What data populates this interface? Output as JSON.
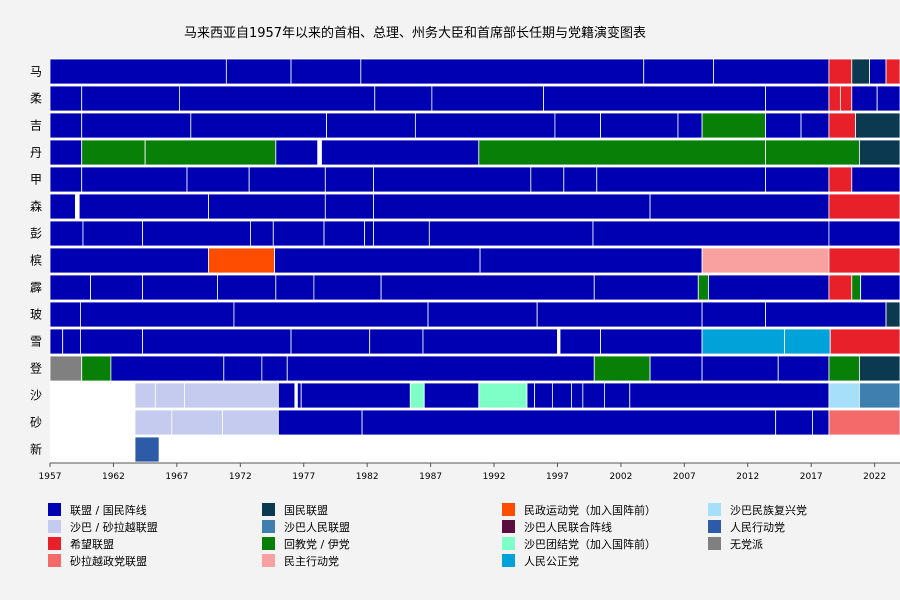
{
  "chart_data": {
    "type": "timeline",
    "title": "马来西亚自1957年以来的首相、总理、州务大臣和首席部长任期与党籍演变图表",
    "xlim": [
      1957,
      2024
    ],
    "x_ticks": [
      1957,
      1962,
      1967,
      1972,
      1977,
      1982,
      1987,
      1992,
      1997,
      2002,
      2007,
      2012,
      2017,
      2022
    ],
    "rows": [
      "马",
      "柔",
      "吉",
      "丹",
      "甲",
      "森",
      "彭",
      "槟",
      "霹",
      "玻",
      "雪",
      "登",
      "沙",
      "砂",
      "新"
    ],
    "parties": [
      {
        "key": "BN",
        "name": "联盟 / 国民阵线",
        "color": "#0000b3"
      },
      {
        "key": "SABAH_ALLIANCE",
        "name": "沙巴 / 砂拉越联盟",
        "color": "#c5caef"
      },
      {
        "key": "PH",
        "name": "希望联盟",
        "color": "#e8202a"
      },
      {
        "key": "GPS",
        "name": "砂拉越政党联盟",
        "color": "#f46a6a"
      },
      {
        "key": "PN",
        "name": "国民联盟",
        "color": "#0b3a50"
      },
      {
        "key": "USNO",
        "name": "沙巴人民联盟",
        "color": "#3f7fb0"
      },
      {
        "key": "PAS",
        "name": "回教党 / 伊党",
        "color": "#088008"
      },
      {
        "key": "DAP",
        "name": "民主行动党",
        "color": "#f9a0a0"
      },
      {
        "key": "GERAKAN",
        "name": "民政运动党（加入国阵前）",
        "color": "#ff4d00"
      },
      {
        "key": "UPKO",
        "name": "沙巴人民联合阵线",
        "color": "#5a0e40"
      },
      {
        "key": "PBS",
        "name": "沙巴团结党（加入国阵前）",
        "color": "#7fffc8"
      },
      {
        "key": "PKR",
        "name": "人民公正党",
        "color": "#00a3d9"
      },
      {
        "key": "WARISAN",
        "name": "沙巴民族复兴党",
        "color": "#a5dff9"
      },
      {
        "key": "PAP",
        "name": "人民行动党",
        "color": "#2e5ba8"
      },
      {
        "key": "IND",
        "name": "无党派",
        "color": "#808080"
      }
    ],
    "tenures": [
      [
        [
          "BN",
          1957.0,
          1970.9
        ],
        [
          "BN",
          1970.9,
          1976.0
        ],
        [
          "BN",
          1976.0,
          1981.5
        ],
        [
          "BN",
          1981.5,
          2003.8
        ],
        [
          "BN",
          2003.8,
          2009.3
        ],
        [
          "BN",
          2009.3,
          2018.4
        ],
        [
          "PH",
          2018.4,
          2020.2
        ],
        [
          "PN",
          2020.2,
          2021.6
        ],
        [
          "BN",
          2021.6,
          2022.9
        ],
        [
          "PH",
          2022.9,
          2024.0
        ]
      ],
      [
        [
          "BN",
          1957.0,
          1959.5
        ],
        [
          "BN",
          1959.5,
          1967.2
        ],
        [
          "BN",
          1967.2,
          1982.6
        ],
        [
          "BN",
          1982.6,
          1987.1
        ],
        [
          "BN",
          1987.1,
          1995.9
        ],
        [
          "BN",
          1995.9,
          2013.4
        ],
        [
          "BN",
          2013.4,
          2018.4
        ],
        [
          "PH",
          2018.4,
          2019.3
        ],
        [
          "PH",
          2019.3,
          2020.2
        ],
        [
          "BN",
          2020.2,
          2022.2
        ],
        [
          "BN",
          2022.2,
          2024.0
        ]
      ],
      [
        [
          "BN",
          1957.0,
          1959.5
        ],
        [
          "BN",
          1959.5,
          1968.1
        ],
        [
          "BN",
          1968.1,
          1978.8
        ],
        [
          "BN",
          1978.8,
          1985.8
        ],
        [
          "BN",
          1985.8,
          1996.8
        ],
        [
          "BN",
          1996.8,
          2000.4
        ],
        [
          "BN",
          2000.4,
          2006.5
        ],
        [
          "BN",
          2006.5,
          2008.4
        ],
        [
          "PAS",
          2008.4,
          2013.4
        ],
        [
          "BN",
          2013.4,
          2016.2
        ],
        [
          "BN",
          2016.2,
          2018.4
        ],
        [
          "PH",
          2018.4,
          2020.5
        ],
        [
          "PN",
          2020.5,
          2024.0
        ]
      ],
      [
        [
          "BN",
          1957.0,
          1959.5
        ],
        [
          "PAS",
          1959.5,
          1964.5
        ],
        [
          "PAS",
          1964.5,
          1974.8
        ],
        [
          "BN",
          1974.8,
          1978.1
        ],
        [
          "BN",
          1978.4,
          1990.8
        ],
        [
          "PAS",
          1990.8,
          2013.4
        ],
        [
          "PAS",
          2013.4,
          2020.8
        ],
        [
          "PN",
          2020.8,
          2024.0
        ]
      ],
      [
        [
          "BN",
          1957.0,
          1959.5
        ],
        [
          "BN",
          1959.5,
          1967.8
        ],
        [
          "BN",
          1967.8,
          1972.7
        ],
        [
          "BN",
          1972.7,
          1978.7
        ],
        [
          "BN",
          1978.7,
          1982.5
        ],
        [
          "BN",
          1982.5,
          1994.9
        ],
        [
          "BN",
          1994.9,
          1997.5
        ],
        [
          "BN",
          1997.5,
          2000.1
        ],
        [
          "BN",
          2000.1,
          2013.4
        ],
        [
          "BN",
          2013.4,
          2018.4
        ],
        [
          "PH",
          2018.4,
          2020.2
        ],
        [
          "BN",
          2020.2,
          2024.0
        ]
      ],
      [
        [
          "BN",
          1957.0,
          1959.0
        ],
        [
          "BN",
          1959.3,
          1969.5
        ],
        [
          "BN",
          1969.5,
          1978.7
        ],
        [
          "BN",
          1978.7,
          1982.5
        ],
        [
          "BN",
          1982.5,
          2004.3
        ],
        [
          "BN",
          2004.3,
          2018.4
        ],
        [
          "PH",
          2018.4,
          2024.0
        ]
      ],
      [
        [
          "BN",
          1957.0,
          1959.6
        ],
        [
          "BN",
          1959.6,
          1964.3
        ],
        [
          "BN",
          1964.3,
          1972.8
        ],
        [
          "BN",
          1972.8,
          1974.6
        ],
        [
          "BN",
          1974.6,
          1978.6
        ],
        [
          "BN",
          1978.6,
          1981.8
        ],
        [
          "BN",
          1981.8,
          1982.5
        ],
        [
          "BN",
          1982.5,
          1986.9
        ],
        [
          "BN",
          1986.9,
          1999.8
        ],
        [
          "BN",
          1999.8,
          2018.4
        ],
        [
          "BN",
          2018.4,
          2024.0
        ]
      ],
      [
        [
          "BN",
          1957.0,
          1969.5
        ],
        [
          "GERAKAN",
          1969.5,
          1974.7
        ],
        [
          "BN",
          1974.7,
          1990.9
        ],
        [
          "BN",
          1990.9,
          2008.4
        ],
        [
          "DAP",
          2008.4,
          2018.4
        ],
        [
          "PH",
          2018.4,
          2024.0
        ]
      ],
      [
        [
          "BN",
          1957.0,
          1960.2
        ],
        [
          "BN",
          1960.2,
          1964.3
        ],
        [
          "BN",
          1964.3,
          1970.2
        ],
        [
          "BN",
          1970.2,
          1974.8
        ],
        [
          "BN",
          1974.8,
          1977.8
        ],
        [
          "BN",
          1977.8,
          1983.1
        ],
        [
          "BN",
          1983.1,
          1999.9
        ],
        [
          "BN",
          1999.9,
          2008.1
        ],
        [
          "PAS",
          2008.1,
          2008.9
        ],
        [
          "BN",
          2008.9,
          2018.4
        ],
        [
          "PH",
          2018.4,
          2020.2
        ],
        [
          "PAS",
          2020.2,
          2020.9
        ],
        [
          "BN",
          2020.9,
          2024.0
        ]
      ],
      [
        [
          "BN",
          1957.0,
          1959.4
        ],
        [
          "BN",
          1959.4,
          1971.5
        ],
        [
          "BN",
          1971.5,
          1986.8
        ],
        [
          "BN",
          1986.8,
          1995.4
        ],
        [
          "BN",
          1995.4,
          2008.4
        ],
        [
          "BN",
          2008.4,
          2013.4
        ],
        [
          "BN",
          2013.4,
          2022.9
        ],
        [
          "PN",
          2022.9,
          2024.0
        ]
      ],
      [
        [
          "BN",
          1957.0,
          1958.0
        ],
        [
          "BN",
          1958.0,
          1959.4
        ],
        [
          "BN",
          1959.4,
          1964.3
        ],
        [
          "BN",
          1964.3,
          1976.0
        ],
        [
          "BN",
          1976.0,
          1982.2
        ],
        [
          "BN",
          1982.2,
          1986.4
        ],
        [
          "BN",
          1986.4,
          1997.0
        ],
        [
          "BN",
          1997.2,
          2000.4
        ],
        [
          "BN",
          2000.4,
          2008.4
        ],
        [
          "PKR",
          2008.4,
          2014.9
        ],
        [
          "PKR",
          2014.9,
          2018.5
        ],
        [
          "PH",
          2018.5,
          2024.0
        ]
      ],
      [
        [
          "IND",
          1957.0,
          1959.5
        ],
        [
          "PAS",
          1959.5,
          1961.8
        ],
        [
          "BN",
          1961.8,
          1970.7
        ],
        [
          "BN",
          1970.7,
          1973.7
        ],
        [
          "BN",
          1973.7,
          1975.7
        ],
        [
          "BN",
          1975.7,
          1999.9
        ],
        [
          "PAS",
          1999.9,
          2004.3
        ],
        [
          "BN",
          2004.3,
          2008.4
        ],
        [
          "BN",
          2008.4,
          2014.4
        ],
        [
          "BN",
          2014.4,
          2018.4
        ],
        [
          "PAS",
          2018.4,
          2020.8
        ],
        [
          "PN",
          2020.8,
          2024.0
        ]
      ],
      [
        [
          "SABAH_ALLIANCE",
          1963.7,
          1965.3
        ],
        [
          "SABAH_ALLIANCE",
          1965.3,
          1967.6
        ],
        [
          "SABAH_ALLIANCE",
          1967.6,
          1975.0
        ],
        [
          "BN",
          1975.0,
          1976.3
        ],
        [
          "BN",
          1976.5,
          1976.8
        ],
        [
          "BN",
          1976.8,
          1985.4
        ],
        [
          "PBS",
          1985.4,
          1986.5
        ],
        [
          "BN",
          1986.5,
          1990.8
        ],
        [
          "PBS",
          1990.8,
          1994.6
        ],
        [
          "BN",
          1994.6,
          1995.2
        ],
        [
          "BN",
          1995.2,
          1996.6
        ],
        [
          "BN",
          1996.6,
          1998.1
        ],
        [
          "BN",
          1998.1,
          1999.0
        ],
        [
          "BN",
          1999.0,
          2000.7
        ],
        [
          "BN",
          2000.7,
          2002.7
        ],
        [
          "BN",
          2002.7,
          2018.4
        ],
        [
          "WARISAN",
          2018.4,
          2020.8
        ],
        [
          "USNO",
          2020.8,
          2024.0
        ]
      ],
      [
        [
          "SABAH_ALLIANCE",
          1963.7,
          1966.6
        ],
        [
          "SABAH_ALLIANCE",
          1966.6,
          1970.6
        ],
        [
          "SABAH_ALLIANCE",
          1970.6,
          1975.0
        ],
        [
          "BN",
          1975.0,
          1981.6
        ],
        [
          "BN",
          1981.6,
          2014.2
        ],
        [
          "BN",
          2014.2,
          2017.1
        ],
        [
          "BN",
          2017.1,
          2018.4
        ],
        [
          "GPS",
          2018.4,
          2024.0
        ]
      ],
      [
        [
          "PAP",
          1963.7,
          1965.6
        ]
      ]
    ]
  }
}
